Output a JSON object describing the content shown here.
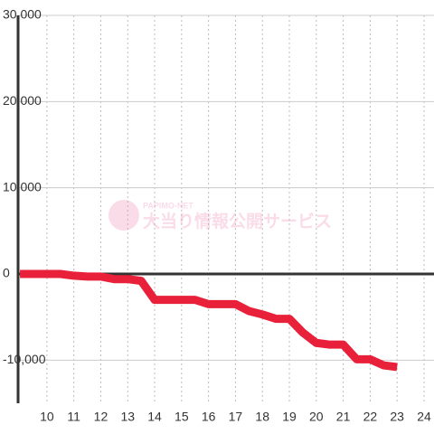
{
  "chart_data": {
    "type": "line",
    "watermark": {
      "brand": "PAPIMO-NET",
      "text": "大当り情報公開サービス"
    },
    "x": [
      9,
      10,
      10.5,
      11,
      11.5,
      12,
      12.5,
      13,
      13.5,
      14,
      14.5,
      15,
      15.5,
      16,
      16.5,
      17,
      17.5,
      18,
      18.5,
      19,
      19.5,
      20,
      20.5,
      21,
      21.5,
      22,
      22.5,
      23
    ],
    "series": [
      {
        "color": "#e8203a",
        "values": [
          0,
          0,
          0,
          -200,
          -300,
          -300,
          -600,
          -600,
          -800,
          -3000,
          -3000,
          -3000,
          -3000,
          -3500,
          -3500,
          -3500,
          -4300,
          -4700,
          -5200,
          -5200,
          -6800,
          -8000,
          -8200,
          -8200,
          -9900,
          -9900,
          -10600,
          -10800
        ]
      }
    ],
    "xlim": [
      8.93,
      24.37
    ],
    "xticks": [
      10,
      11,
      12,
      13,
      14,
      15,
      16,
      17,
      18,
      19,
      20,
      21,
      22,
      23,
      24
    ],
    "ylim": [
      -15000,
      30000
    ],
    "yticks": [
      {
        "value": -10000,
        "label": "-10,000"
      },
      0,
      {
        "value": 10000,
        "label": "10,000"
      },
      {
        "value": 20000,
        "label": "20,000"
      },
      {
        "value": 30000,
        "label": "30,000"
      }
    ],
    "grid": true
  }
}
